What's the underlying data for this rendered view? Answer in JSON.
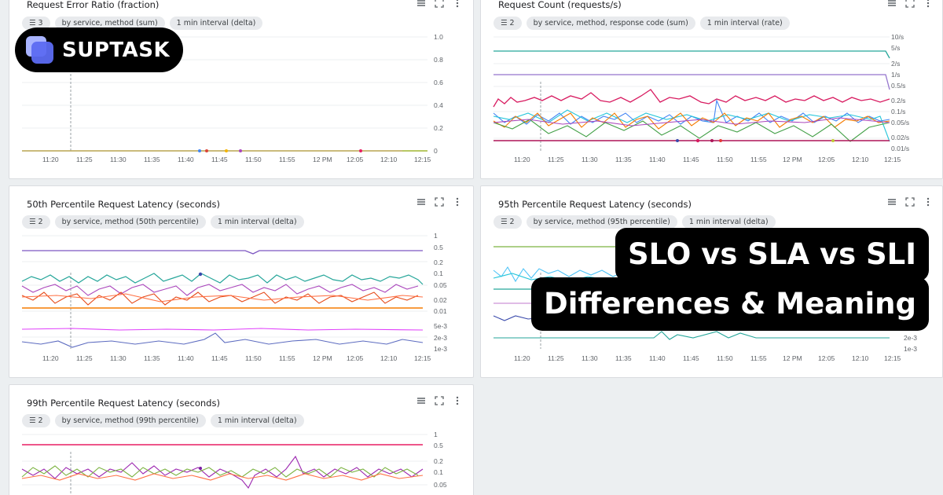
{
  "panels": [
    {
      "id": "error-ratio",
      "title": "Request Error Ratio (fraction)",
      "chips": [
        {
          "filter": true,
          "label": "3"
        },
        {
          "label": "by service, method (sum)"
        },
        {
          "label": "1 min interval (delta)"
        }
      ],
      "y_ticks": [
        "1.0",
        "0.8",
        "0.6",
        "0.4",
        "0.2",
        "0"
      ],
      "x_ticks": [
        "11:20",
        "11:25",
        "11:30",
        "11:35",
        "11:40",
        "11:45",
        "11:50",
        "11:55",
        "12 PM",
        "12:05",
        "12:10",
        "12:15"
      ]
    },
    {
      "id": "request-count",
      "title": "Request Count (requests/s)",
      "chips": [
        {
          "filter": true,
          "label": "2"
        },
        {
          "label": "by service, method, response code (sum)"
        },
        {
          "label": "1 min interval (rate)"
        }
      ],
      "y_ticks": [
        "10/s",
        "5/s",
        "2/s",
        "1/s",
        "0.5/s",
        "0.2/s",
        "0.1/s",
        "0.05/s",
        "0.02/s",
        "0.01/s"
      ],
      "x_ticks": [
        "11:20",
        "11:25",
        "11:30",
        "11:35",
        "11:40",
        "11:45",
        "11:50",
        "11:55",
        "12 PM",
        "12:05",
        "12:10",
        "12:15"
      ]
    },
    {
      "id": "p50-latency",
      "title": "50th Percentile Request Latency (seconds)",
      "chips": [
        {
          "filter": true,
          "label": "2"
        },
        {
          "label": "by service, method (50th percentile)"
        },
        {
          "label": "1 min interval (delta)"
        }
      ],
      "y_ticks": [
        "1",
        "0.5",
        "0.2",
        "0.1",
        "0.05",
        "0.02",
        "0.01",
        "5e-3",
        "2e-3",
        "1e-3"
      ],
      "x_ticks": [
        "11:20",
        "11:25",
        "11:30",
        "11:35",
        "11:40",
        "11:45",
        "11:50",
        "11:55",
        "12 PM",
        "12:05",
        "12:10",
        "12:15"
      ]
    },
    {
      "id": "p95-latency",
      "title": "95th Percentile Request Latency (seconds)",
      "chips": [
        {
          "filter": true,
          "label": "2"
        },
        {
          "label": "by service, method (95th percentile)"
        },
        {
          "label": "1 min interval (delta)"
        }
      ],
      "y_ticks": [
        "2e-3",
        "1e-3"
      ],
      "x_ticks": [
        "11:20",
        "11:25",
        "11:30",
        "11:35",
        "11:40",
        "11:45",
        "11:50",
        "11:55",
        "12 PM",
        "12:05",
        "12:10",
        "12:15"
      ]
    },
    {
      "id": "p99-latency",
      "title": "99th Percentile Request Latency (seconds)",
      "chips": [
        {
          "filter": true,
          "label": "2"
        },
        {
          "label": "by service, method (99th percentile)"
        },
        {
          "label": "1 min interval (delta)"
        }
      ],
      "y_ticks": [
        "1",
        "0.5",
        "0.2",
        "0.1",
        "0.05"
      ],
      "x_ticks": []
    }
  ],
  "brand": {
    "name": "SUPTASK"
  },
  "headline": {
    "line1": "SLO vs SLA vs SLI",
    "line2": "Differences & Meaning"
  },
  "colors": {
    "panel_bg": "#ffffff",
    "page_bg": "#eceff1",
    "chip_bg": "#e8eaed",
    "logo_accent": "#5c6bf2"
  }
}
